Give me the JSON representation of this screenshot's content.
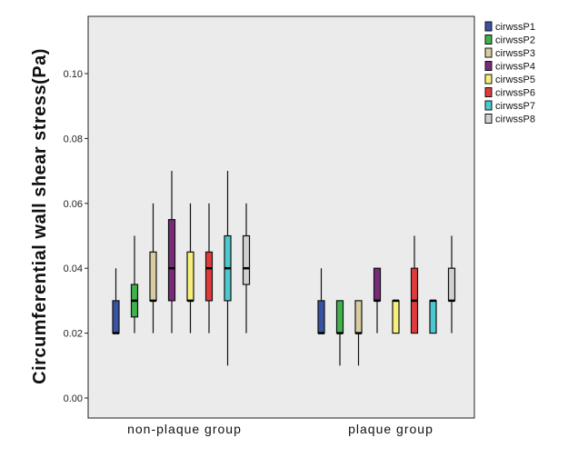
{
  "chart_data": {
    "type": "boxplot",
    "title": "",
    "xlabel": "",
    "ylabel": "Circumferential wall shear stress(Pa)",
    "ylim": [
      -0.003,
      0.11
    ],
    "yticks": [
      "0.00",
      "0.02",
      "0.04",
      "0.06",
      "0.08",
      "0.10"
    ],
    "ytick_values": [
      0.0,
      0.02,
      0.04,
      0.06,
      0.08,
      0.1
    ],
    "grid": false,
    "legend_position": "right",
    "background": "#ebebeb",
    "categories": [
      "non-plaque group",
      "plaque group"
    ],
    "series": [
      {
        "name": "cirwssP1",
        "color": "#3953a4",
        "stats": [
          {
            "min": 0.02,
            "q1": 0.02,
            "median": 0.02,
            "q3": 0.03,
            "max": 0.04
          },
          {
            "min": 0.02,
            "q1": 0.02,
            "median": 0.02,
            "q3": 0.03,
            "max": 0.04
          }
        ]
      },
      {
        "name": "cirwssP2",
        "color": "#3cb44b",
        "stats": [
          {
            "min": 0.02,
            "q1": 0.025,
            "median": 0.03,
            "q3": 0.035,
            "max": 0.05
          },
          {
            "min": 0.01,
            "q1": 0.02,
            "median": 0.02,
            "q3": 0.03,
            "max": 0.03
          }
        ]
      },
      {
        "name": "cirwssP3",
        "color": "#d8cca0",
        "stats": [
          {
            "min": 0.02,
            "q1": 0.03,
            "median": 0.03,
            "q3": 0.045,
            "max": 0.06
          },
          {
            "min": 0.01,
            "q1": 0.02,
            "median": 0.02,
            "q3": 0.03,
            "max": 0.03
          }
        ]
      },
      {
        "name": "cirwssP4",
        "color": "#7b2a7b",
        "stats": [
          {
            "min": 0.02,
            "q1": 0.03,
            "median": 0.04,
            "q3": 0.055,
            "max": 0.07
          },
          {
            "min": 0.02,
            "q1": 0.03,
            "median": 0.03,
            "q3": 0.04,
            "max": 0.04
          }
        ]
      },
      {
        "name": "cirwssP5",
        "color": "#f6f07a",
        "stats": [
          {
            "min": 0.02,
            "q1": 0.03,
            "median": 0.03,
            "q3": 0.045,
            "max": 0.06
          },
          {
            "min": 0.02,
            "q1": 0.02,
            "median": 0.03,
            "q3": 0.03,
            "max": 0.03
          }
        ]
      },
      {
        "name": "cirwssP6",
        "color": "#e23a3a",
        "stats": [
          {
            "min": 0.02,
            "q1": 0.03,
            "median": 0.04,
            "q3": 0.045,
            "max": 0.06
          },
          {
            "min": 0.02,
            "q1": 0.02,
            "median": 0.03,
            "q3": 0.04,
            "max": 0.05
          }
        ]
      },
      {
        "name": "cirwssP7",
        "color": "#4cc8cf",
        "stats": [
          {
            "min": 0.01,
            "q1": 0.03,
            "median": 0.04,
            "q3": 0.05,
            "max": 0.07
          },
          {
            "min": 0.02,
            "q1": 0.02,
            "median": 0.03,
            "q3": 0.03,
            "max": 0.03
          }
        ]
      },
      {
        "name": "cirwssP8",
        "color": "#d0d0d0",
        "stats": [
          {
            "min": 0.02,
            "q1": 0.035,
            "median": 0.04,
            "q3": 0.05,
            "max": 0.06
          },
          {
            "min": 0.02,
            "q1": 0.03,
            "median": 0.03,
            "q3": 0.04,
            "max": 0.05
          }
        ]
      }
    ]
  }
}
